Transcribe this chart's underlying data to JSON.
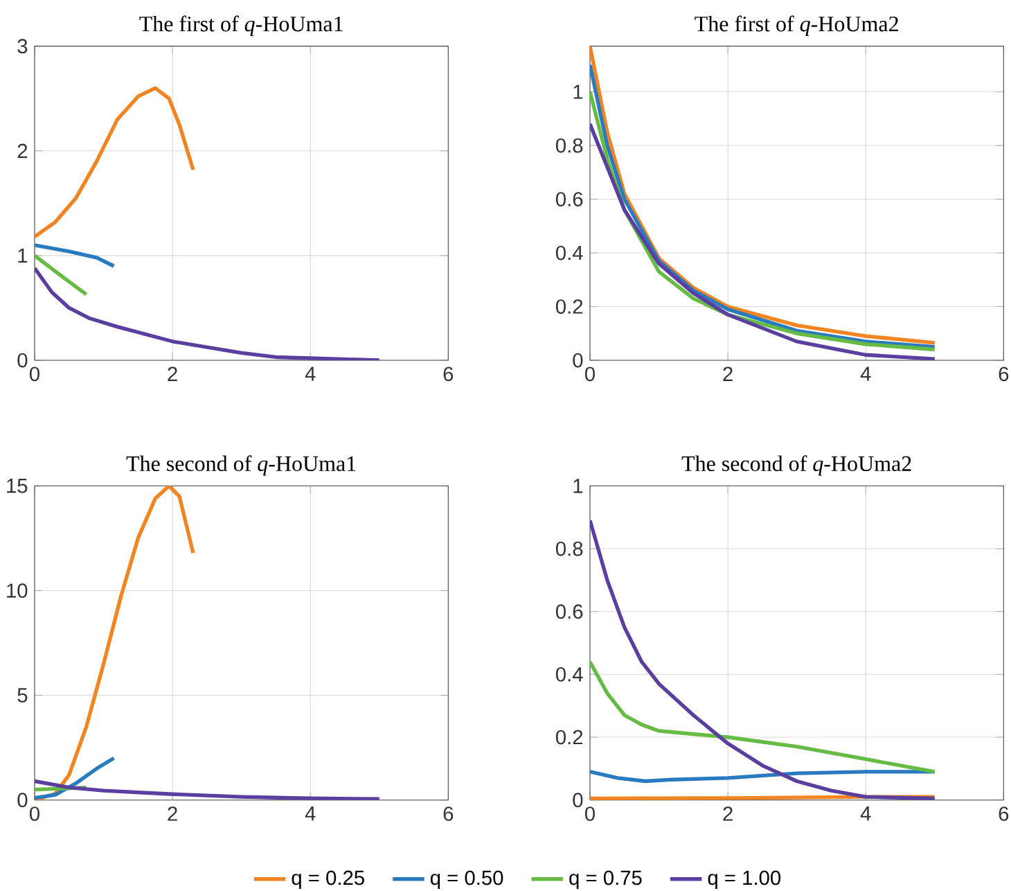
{
  "chart_data": [
    {
      "type": "line",
      "title": "The first of *q*-HoUma1",
      "xlim": [
        0,
        6
      ],
      "ylim": [
        0,
        3
      ],
      "xticks": [
        0,
        2,
        4,
        6
      ],
      "yticks": [
        0,
        1,
        2,
        3
      ],
      "grid": true,
      "series": [
        {
          "color": "#f28522",
          "x": [
            0,
            0.3,
            0.6,
            0.9,
            1.2,
            1.5,
            1.75,
            1.95,
            2.1,
            2.3
          ],
          "values": [
            1.18,
            1.32,
            1.55,
            1.9,
            2.3,
            2.52,
            2.6,
            2.5,
            2.25,
            1.82
          ]
        },
        {
          "color": "#2a7ac0",
          "x": [
            0,
            0.5,
            0.9,
            1.15
          ],
          "values": [
            1.1,
            1.04,
            0.98,
            0.9
          ]
        },
        {
          "color": "#66bb44",
          "x": [
            0,
            0.3,
            0.5,
            0.75
          ],
          "values": [
            1.0,
            0.85,
            0.75,
            0.63
          ]
        },
        {
          "color": "#5b3fa0",
          "x": [
            0,
            0.25,
            0.5,
            0.8,
            1.2,
            2,
            3,
            3.5,
            4,
            5
          ],
          "values": [
            0.88,
            0.65,
            0.5,
            0.4,
            0.32,
            0.18,
            0.07,
            0.03,
            0.02,
            0.0
          ]
        }
      ]
    },
    {
      "type": "line",
      "title": "The first of *q*-HoUma2",
      "xlim": [
        0,
        6
      ],
      "ylim": [
        0,
        1.17
      ],
      "xticks": [
        0,
        2,
        4,
        6
      ],
      "yticks": [
        0,
        0.2,
        0.4,
        0.6,
        0.8,
        1
      ],
      "grid": true,
      "series": [
        {
          "color": "#f28522",
          "x": [
            0,
            0.25,
            0.5,
            1,
            1.5,
            2,
            3,
            4,
            5
          ],
          "values": [
            1.17,
            0.85,
            0.62,
            0.38,
            0.27,
            0.2,
            0.13,
            0.09,
            0.065
          ]
        },
        {
          "color": "#2a7ac0",
          "x": [
            0,
            0.25,
            0.5,
            1,
            1.5,
            2,
            3,
            4,
            5
          ],
          "values": [
            1.1,
            0.8,
            0.6,
            0.37,
            0.26,
            0.19,
            0.11,
            0.07,
            0.05
          ]
        },
        {
          "color": "#66bb44",
          "x": [
            0,
            0.25,
            0.5,
            1,
            1.5,
            2,
            3,
            4,
            5
          ],
          "values": [
            1.0,
            0.75,
            0.56,
            0.33,
            0.23,
            0.17,
            0.1,
            0.06,
            0.04
          ]
        },
        {
          "color": "#5b3fa0",
          "x": [
            0,
            0.25,
            0.5,
            1,
            1.5,
            2,
            3,
            4,
            5
          ],
          "values": [
            0.88,
            0.72,
            0.56,
            0.36,
            0.25,
            0.17,
            0.07,
            0.02,
            0.005
          ]
        }
      ]
    },
    {
      "type": "line",
      "title": "The second of *q*-HoUma1",
      "xlim": [
        0,
        6
      ],
      "ylim": [
        0,
        15
      ],
      "xticks": [
        0,
        2,
        4,
        6
      ],
      "yticks": [
        0,
        5,
        10,
        15
      ],
      "grid": true,
      "legend": "bottom",
      "series": [
        {
          "name": "q = 0.25",
          "color": "#f28522",
          "x": [
            0,
            0.3,
            0.5,
            0.75,
            1,
            1.25,
            1.5,
            1.75,
            1.95,
            2.1,
            2.3
          ],
          "values": [
            0,
            0.3,
            1.2,
            3.5,
            6.5,
            9.7,
            12.5,
            14.4,
            15,
            14.5,
            11.8
          ]
        },
        {
          "name": "q = 0.50",
          "color": "#2a7ac0",
          "x": [
            0,
            0.3,
            0.6,
            0.9,
            1.15
          ],
          "values": [
            0.1,
            0.25,
            0.8,
            1.5,
            2.0
          ]
        },
        {
          "name": "q = 0.75",
          "color": "#66bb44",
          "x": [
            0,
            0.4,
            0.75
          ],
          "values": [
            0.5,
            0.55,
            0.6
          ]
        },
        {
          "name": "q = 1.00",
          "color": "#5b3fa0",
          "x": [
            0,
            0.5,
            1,
            2,
            3,
            4,
            5
          ],
          "values": [
            0.9,
            0.6,
            0.45,
            0.28,
            0.15,
            0.08,
            0.05
          ]
        }
      ]
    },
    {
      "type": "line",
      "title": "The second of *q*-HoUma2",
      "xlim": [
        0,
        6
      ],
      "ylim": [
        0,
        1
      ],
      "xticks": [
        0,
        2,
        4,
        6
      ],
      "yticks": [
        0,
        0.2,
        0.4,
        0.6,
        0.8,
        1
      ],
      "grid": true,
      "series": [
        {
          "color": "#f28522",
          "x": [
            0,
            2,
            4,
            5
          ],
          "values": [
            0.005,
            0.006,
            0.01,
            0.01
          ]
        },
        {
          "color": "#2a7ac0",
          "x": [
            0,
            0.4,
            0.8,
            1.2,
            2,
            3,
            4,
            5
          ],
          "values": [
            0.09,
            0.07,
            0.06,
            0.065,
            0.07,
            0.085,
            0.09,
            0.09
          ]
        },
        {
          "color": "#66bb44",
          "x": [
            0,
            0.25,
            0.5,
            0.75,
            1,
            1.5,
            2,
            3,
            4,
            5
          ],
          "values": [
            0.44,
            0.34,
            0.27,
            0.24,
            0.22,
            0.21,
            0.2,
            0.17,
            0.13,
            0.09
          ]
        },
        {
          "color": "#5b3fa0",
          "x": [
            0,
            0.25,
            0.5,
            0.75,
            1,
            1.5,
            2,
            2.5,
            3,
            3.5,
            4,
            5
          ],
          "values": [
            0.89,
            0.7,
            0.55,
            0.44,
            0.37,
            0.27,
            0.18,
            0.11,
            0.06,
            0.03,
            0.01,
            0.005
          ]
        }
      ]
    }
  ]
}
